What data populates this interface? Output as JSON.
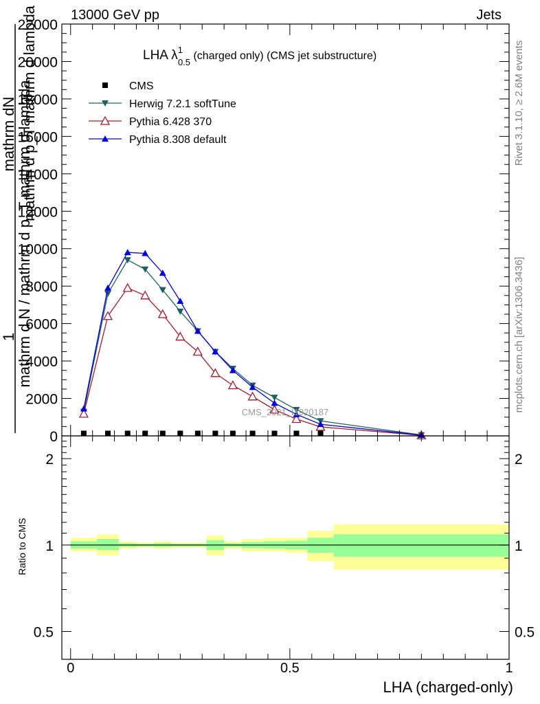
{
  "header": {
    "left": "13000 GeV pp",
    "right": "Jets"
  },
  "side": {
    "rivet": "Rivet 3.1.10, ≥ 2.6M events",
    "mcplots": "mcplots.cern.ch [arXiv:1306.3436]"
  },
  "chart_data": {
    "type": "line",
    "title_main": "LHA λ",
    "title_sup": "1",
    "title_sub": "0.5",
    "title_rest": " (charged only) (CMS jet substructure)",
    "watermark": "CMS_2021_I1920187",
    "xlabel": "LHA (charged-only)",
    "ylabel_line1": "1",
    "ylabel_line2": "mathrm d N / mathrm d p_T mathrm d lambda",
    "ylabel_num": "mathrm dN",
    "ylabel_den": "mathrm d p_T mathrm d lambda",
    "ratio_ylabel": "Ratio to CMS",
    "xlim": [
      -0.02,
      1.0
    ],
    "ylim": [
      0,
      22000
    ],
    "ratio_ylim": [
      0.4,
      2.4
    ],
    "x_ticks": [
      0,
      0.5,
      1
    ],
    "x_tick_labels": [
      "0",
      "0.5",
      "1"
    ],
    "y_ticks": [
      0,
      2000,
      4000,
      6000,
      8000,
      10000,
      12000,
      14000,
      16000,
      18000,
      20000,
      22000
    ],
    "y_tick_labels": [
      "0",
      "2000",
      "4000",
      "6000",
      "8000",
      "10000",
      "12000",
      "14000",
      "16000",
      "18000",
      "20000",
      "22000"
    ],
    "ratio_y_ticks": [
      0.5,
      1,
      2
    ],
    "ratio_y_tick_labels": [
      "0.5",
      "1",
      "2"
    ],
    "x": [
      0.03,
      0.085,
      0.13,
      0.17,
      0.21,
      0.25,
      0.29,
      0.33,
      0.37,
      0.415,
      0.465,
      0.515,
      0.57,
      0.8
    ],
    "series": [
      {
        "name": "CMS",
        "color": "#000000",
        "marker": "square",
        "values": [
          130,
          130,
          130,
          130,
          130,
          130,
          130,
          130,
          130,
          130,
          130,
          130,
          130,
          null
        ]
      },
      {
        "name": "Herwig 7.2.1 softTune",
        "color": "#1f5f5f",
        "marker": "triangle-down",
        "values": [
          1300,
          7600,
          9400,
          8900,
          7800,
          6650,
          5600,
          4500,
          3600,
          2700,
          2050,
          1400,
          800,
          50
        ]
      },
      {
        "name": "Pythia 6.428 370",
        "color": "#a01c2c",
        "marker": "triangle-up-open",
        "values": [
          1180,
          6400,
          7900,
          7500,
          6500,
          5300,
          4500,
          3350,
          2700,
          2100,
          1400,
          900,
          480,
          30
        ]
      },
      {
        "name": "Pythia 8.308 default",
        "color": "#0000dd",
        "marker": "triangle-up",
        "values": [
          1450,
          7900,
          9800,
          9750,
          8700,
          7200,
          5600,
          4500,
          3500,
          2600,
          1750,
          1150,
          620,
          40
        ]
      }
    ],
    "ratio_bins": [
      {
        "xlo": 0.0,
        "xhi": 0.06,
        "inner": [
          0.97,
          1.03
        ],
        "outer": [
          0.95,
          1.06
        ]
      },
      {
        "xlo": 0.06,
        "xhi": 0.11,
        "inner": [
          0.96,
          1.05
        ],
        "outer": [
          0.92,
          1.09
        ]
      },
      {
        "xlo": 0.11,
        "xhi": 0.15,
        "inner": [
          0.985,
          1.015
        ],
        "outer": [
          0.97,
          1.03
        ]
      },
      {
        "xlo": 0.15,
        "xhi": 0.19,
        "inner": [
          0.99,
          1.01
        ],
        "outer": [
          0.98,
          1.02
        ]
      },
      {
        "xlo": 0.19,
        "xhi": 0.23,
        "inner": [
          0.985,
          1.015
        ],
        "outer": [
          0.97,
          1.03
        ]
      },
      {
        "xlo": 0.23,
        "xhi": 0.27,
        "inner": [
          0.99,
          1.01
        ],
        "outer": [
          0.98,
          1.02
        ]
      },
      {
        "xlo": 0.27,
        "xhi": 0.31,
        "inner": [
          0.99,
          1.01
        ],
        "outer": [
          0.98,
          1.02
        ]
      },
      {
        "xlo": 0.31,
        "xhi": 0.35,
        "inner": [
          0.96,
          1.04
        ],
        "outer": [
          0.92,
          1.08
        ]
      },
      {
        "xlo": 0.35,
        "xhi": 0.39,
        "inner": [
          0.985,
          1.015
        ],
        "outer": [
          0.97,
          1.03
        ]
      },
      {
        "xlo": 0.39,
        "xhi": 0.44,
        "inner": [
          0.975,
          1.025
        ],
        "outer": [
          0.95,
          1.05
        ]
      },
      {
        "xlo": 0.44,
        "xhi": 0.49,
        "inner": [
          0.97,
          1.03
        ],
        "outer": [
          0.95,
          1.06
        ]
      },
      {
        "xlo": 0.49,
        "xhi": 0.54,
        "inner": [
          0.965,
          1.035
        ],
        "outer": [
          0.94,
          1.06
        ]
      },
      {
        "xlo": 0.54,
        "xhi": 0.6,
        "inner": [
          0.94,
          1.06
        ],
        "outer": [
          0.88,
          1.12
        ]
      },
      {
        "xlo": 0.6,
        "xhi": 1.0,
        "inner": [
          0.91,
          1.09
        ],
        "outer": [
          0.82,
          1.18
        ]
      }
    ],
    "ratio_inner_color": "#99ff99",
    "ratio_outer_color": "#ffff99"
  }
}
